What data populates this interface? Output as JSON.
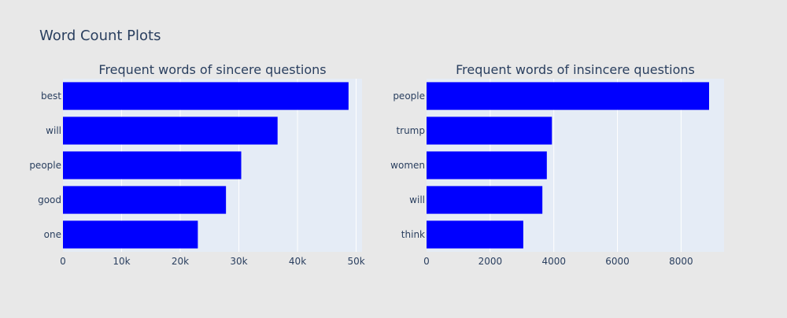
{
  "figure": {
    "title": "Word Count Plots",
    "background_color": "#e8e8e8",
    "plot_background_color": "#e5ecf6",
    "text_color": "#2a3f5f"
  },
  "chart_data": [
    {
      "type": "bar",
      "orientation": "horizontal",
      "title": "Frequent words of sincere questions",
      "categories": [
        "best",
        "will",
        "people",
        "good",
        "one"
      ],
      "values": [
        48700,
        36600,
        30400,
        27800,
        23000
      ],
      "xlim": [
        0,
        51000
      ],
      "xticks": [
        0,
        10000,
        20000,
        30000,
        40000,
        50000
      ],
      "xtick_labels": [
        "0",
        "10k",
        "20k",
        "30k",
        "40k",
        "50k"
      ],
      "bar_color": "#0000ff",
      "grid": true
    },
    {
      "type": "bar",
      "orientation": "horizontal",
      "title": "Frequent words of insincere questions",
      "categories": [
        "people",
        "trump",
        "women",
        "will",
        "think"
      ],
      "values": [
        8880,
        3940,
        3780,
        3640,
        3040
      ],
      "xlim": [
        0,
        9350
      ],
      "xticks": [
        0,
        2000,
        4000,
        6000,
        8000
      ],
      "xtick_labels": [
        "0",
        "2000",
        "4000",
        "6000",
        "8000"
      ],
      "bar_color": "#0000ff",
      "grid": true
    }
  ]
}
